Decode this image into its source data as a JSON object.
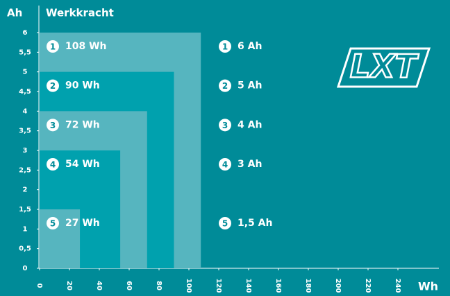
{
  "chart_data": {
    "type": "nested-rect",
    "title": "Werkkracht",
    "ylabel": "Ah",
    "xlabel": "Wh",
    "logo": "LXT",
    "categories": [
      "1",
      "2",
      "3",
      "4",
      "5"
    ],
    "x": [
      108,
      90,
      72,
      54,
      27
    ],
    "x_labels": [
      "108 Wh",
      "90 Wh",
      "72 Wh",
      "54 Wh",
      "27 Wh"
    ],
    "values": [
      6,
      5,
      4,
      3,
      1.5
    ],
    "value_labels": [
      "6 Ah",
      "5 Ah",
      "4 Ah",
      "3 Ah",
      "1,5 Ah"
    ],
    "colors": [
      "#56b5bf",
      "#00a1ae",
      "#56b5bf",
      "#00a1ae",
      "#56b5bf"
    ],
    "ylim": [
      0,
      6
    ],
    "yticks": [
      0,
      {
        "value": 0.5,
        "label": "0,5"
      },
      1,
      {
        "value": 1.5,
        "label": "1,5"
      },
      2,
      {
        "value": 2.5,
        "label": "2,5"
      },
      3,
      {
        "value": 3.5,
        "label": "3,5"
      },
      4,
      {
        "value": 4.5,
        "label": "4,5"
      },
      5,
      {
        "value": 5.5,
        "label": "5,5"
      },
      6
    ],
    "xlim": [
      0,
      240
    ],
    "xticks": [
      0,
      20,
      40,
      60,
      80,
      100,
      120,
      140,
      160,
      180,
      200,
      220,
      240
    ]
  }
}
